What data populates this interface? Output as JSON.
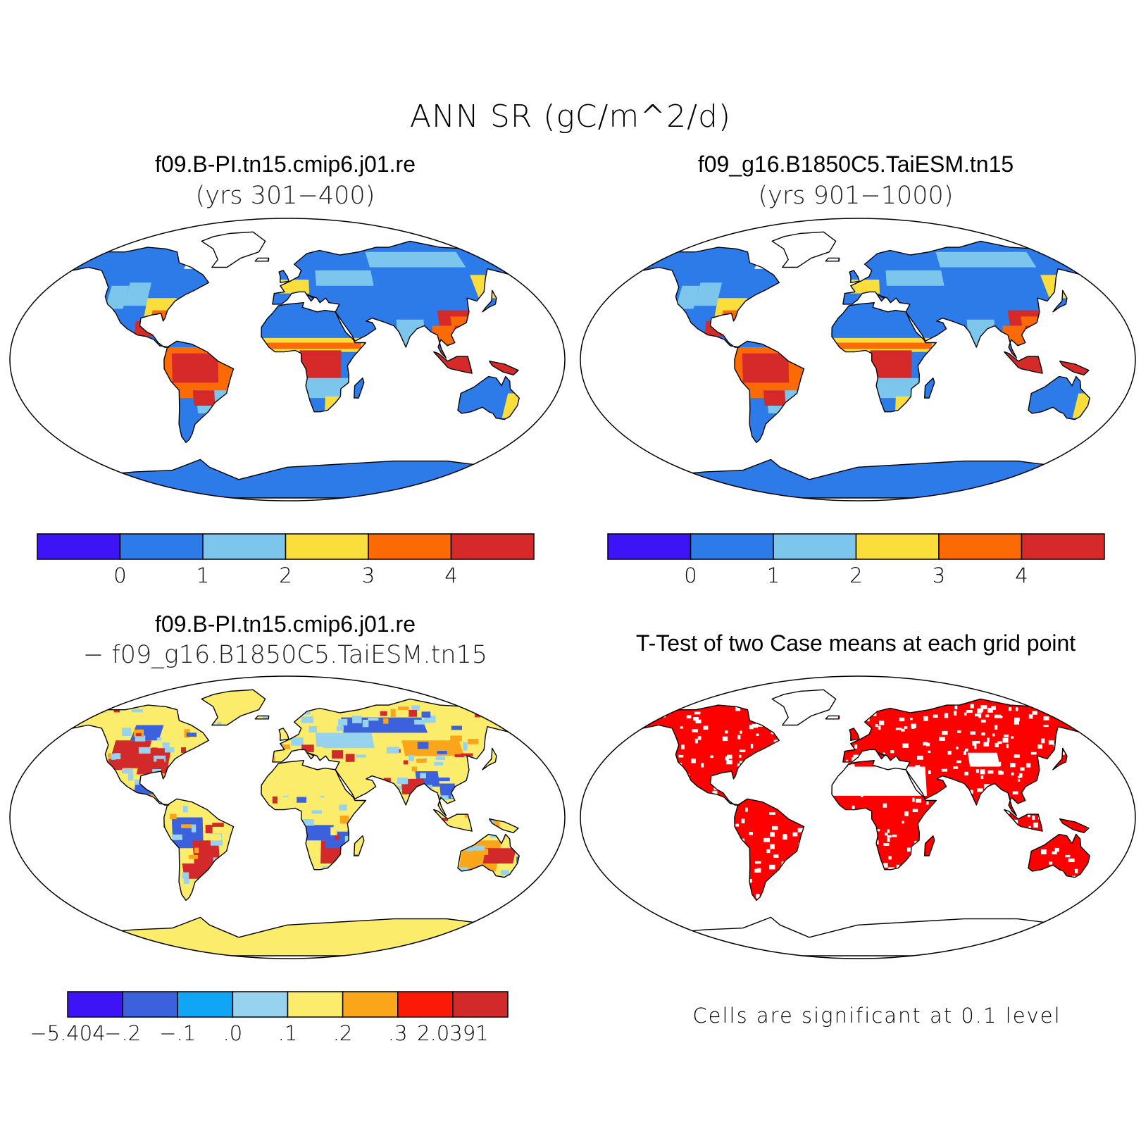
{
  "figure": {
    "title": "ANN SR (gC/m^2/d)"
  },
  "panels": {
    "top_left": {
      "title": "f09.B-PI.tn15.cmip6.j01.re",
      "subtitle": "(yrs 301−400)"
    },
    "top_right": {
      "title": "f09_g16.B1850C5.TaiESM.tn15",
      "subtitle": "(yrs 901−1000)"
    },
    "bottom_left": {
      "title": "f09.B-PI.tn15.cmip6.j01.re",
      "subtitle": "− f09_g16.B1850C5.TaiESM.tn15"
    },
    "bottom_right": {
      "title": "T-Test of two Case means at each grid point",
      "note": "Cells are significant at 0.1 level"
    }
  },
  "colorbars": {
    "mean": {
      "colors": [
        "#3d14f5",
        "#2c7be8",
        "#7cc6ee",
        "#fbdd3c",
        "#fb6a05",
        "#d62a2a"
      ],
      "tick_labels": [
        "0",
        "1",
        "2",
        "3",
        "4"
      ]
    },
    "diff": {
      "colors": [
        "#3d14f5",
        "#3b62dc",
        "#10a6f5",
        "#97d2ee",
        "#fbec6b",
        "#fba51a",
        "#fb1a05",
        "#d22a2a"
      ],
      "tick_labels": [
        "−5.404",
        "−.2",
        "−.1",
        ".0",
        ".1",
        ".2",
        ".3",
        "2.0391"
      ]
    },
    "ttest": {
      "significant_color": "#ff0000"
    }
  },
  "map_colors": {
    "boreal_low": "#2c7be8",
    "mid": "#7cc6ee",
    "warm": "#fbdd3c",
    "hot": "#fb6a05",
    "tropical": "#d62a2a",
    "diff_base": "#fbec6b",
    "diff_pos": "#d22a2a",
    "diff_neg": "#3b62dc",
    "diff_lightneg": "#97d2ee",
    "diff_orange": "#fba51a",
    "sig": "#ff0000"
  },
  "chart_data": [
    {
      "type": "heatmap",
      "title": "f09.B-PI.tn15.cmip6.j01.re (yrs 301−400)",
      "colorbar_levels": [
        0,
        1,
        2,
        3,
        4
      ]
    },
    {
      "type": "heatmap",
      "title": "f09_g16.B1850C5.TaiESM.tn15 (yrs 901−1000)",
      "colorbar_levels": [
        0,
        1,
        2,
        3,
        4
      ]
    },
    {
      "type": "heatmap",
      "title": "f09.B-PI.tn15.cmip6.j01.re − f09_g16.B1850C5.TaiESM.tn15",
      "colorbar_levels": [
        -5.404,
        -0.2,
        -0.1,
        0.0,
        0.1,
        0.2,
        0.3,
        2.0391
      ]
    },
    {
      "type": "heatmap",
      "title": "T-Test of two Case means at each grid point",
      "note": "Cells are significant at 0.1 level"
    }
  ]
}
